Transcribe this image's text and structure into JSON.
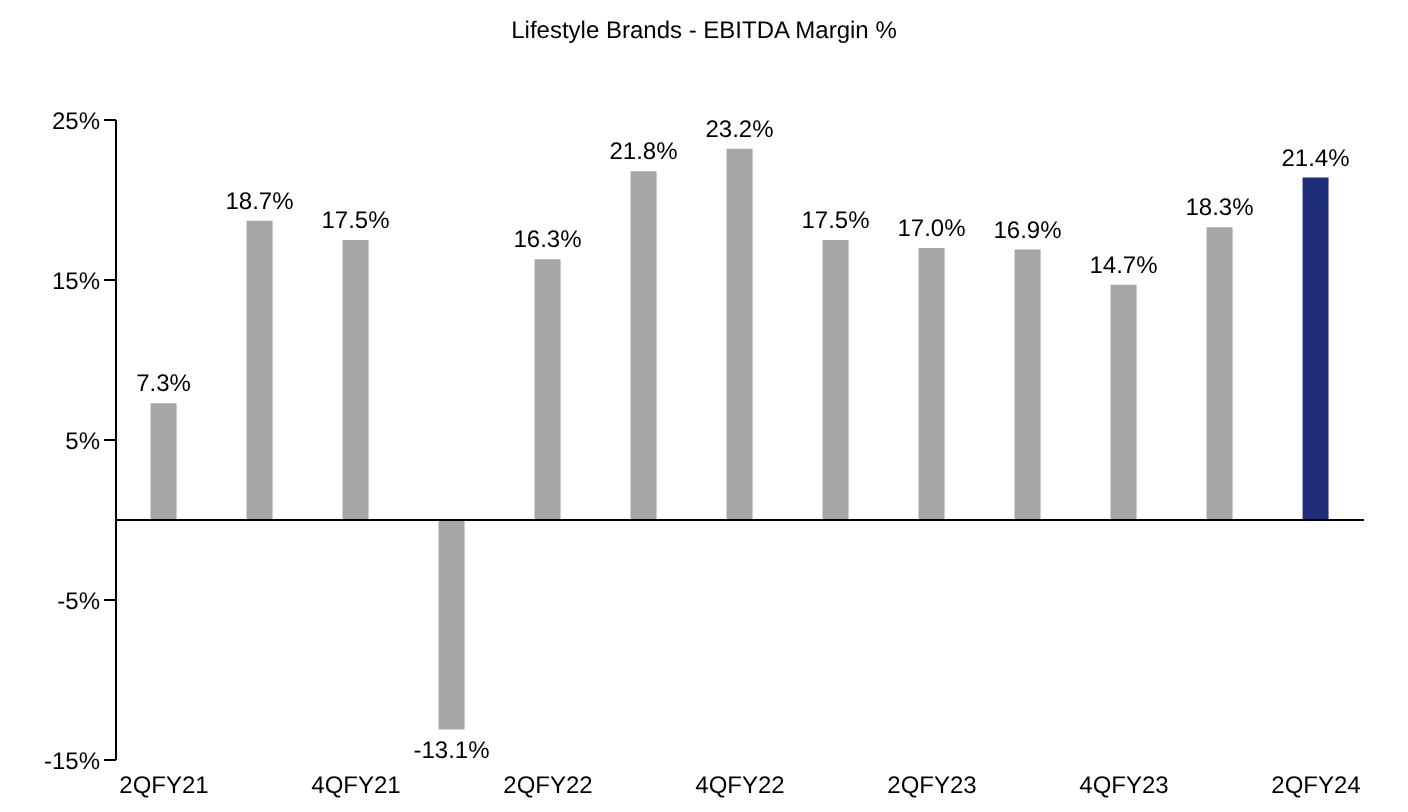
{
  "chart_data": {
    "type": "bar",
    "title": "Lifestyle Brands - EBITDA Margin %",
    "categories": [
      "2QFY21",
      null,
      "4QFY21",
      null,
      "2QFY22",
      null,
      "4QFY22",
      null,
      "2QFY23",
      null,
      "4QFY23",
      null,
      "2QFY24"
    ],
    "values": [
      7.3,
      18.7,
      17.5,
      -13.1,
      16.3,
      21.8,
      23.2,
      17.5,
      17.0,
      16.9,
      14.7,
      18.3,
      21.4
    ],
    "colors": [
      "#a6a6a6",
      "#a6a6a6",
      "#a6a6a6",
      "#a6a6a6",
      "#a6a6a6",
      "#a6a6a6",
      "#a6a6a6",
      "#a6a6a6",
      "#a6a6a6",
      "#a6a6a6",
      "#a6a6a6",
      "#a6a6a6",
      "#1f2d7b"
    ],
    "value_labels": [
      "7.3%",
      "18.7%",
      "17.5%",
      "-13.1%",
      "16.3%",
      "21.8%",
      "23.2%",
      "17.5%",
      "17.0%",
      "16.9%",
      "14.7%",
      "18.3%",
      "21.4%"
    ],
    "ylim": [
      -15,
      25
    ],
    "yticks": [
      {
        "value": -15,
        "label": "-15%"
      },
      {
        "value": -5,
        "label": "-5%"
      },
      {
        "value": 5,
        "label": "5%"
      },
      {
        "value": 15,
        "label": "15%"
      },
      {
        "value": 25,
        "label": "25%"
      }
    ],
    "grid": false,
    "legend": false
  }
}
